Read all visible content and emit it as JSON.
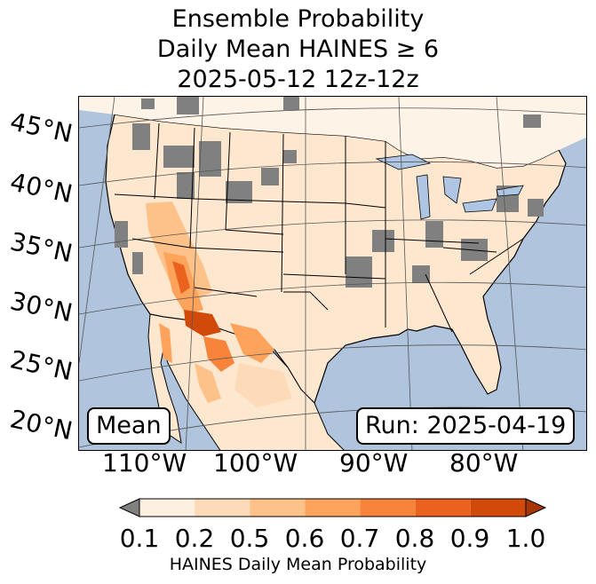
{
  "title": {
    "line1": "Ensemble Probability",
    "line2": "Daily Mean HAINES ≥ 6",
    "line3": "2025-05-12 12z-12z"
  },
  "map": {
    "mean_label": "Mean",
    "run_label": "Run: 2025-04-19",
    "lat_labels": [
      "45°N",
      "40°N",
      "35°N",
      "30°N",
      "25°N",
      "20°N"
    ],
    "lon_labels": [
      "110°W",
      "100°W",
      "90°W",
      "80°W"
    ],
    "colors": {
      "ocean": "#b0c4de",
      "land_base": "#fef3e7",
      "missing_gray": "#808080",
      "water": "#aec6e4"
    }
  },
  "colorbar": {
    "ticks": [
      "0.1",
      "0.2",
      "0.5",
      "0.6",
      "0.7",
      "0.8",
      "0.9",
      "1.0"
    ],
    "label": "HAINES Daily Mean Probability",
    "colors": [
      "#fef0e1",
      "#fddbb9",
      "#fdc28a",
      "#fda35c",
      "#f8833a",
      "#ea621e",
      "#d14a0a"
    ],
    "under_color": "#808080",
    "over_color": "#a63603"
  }
}
